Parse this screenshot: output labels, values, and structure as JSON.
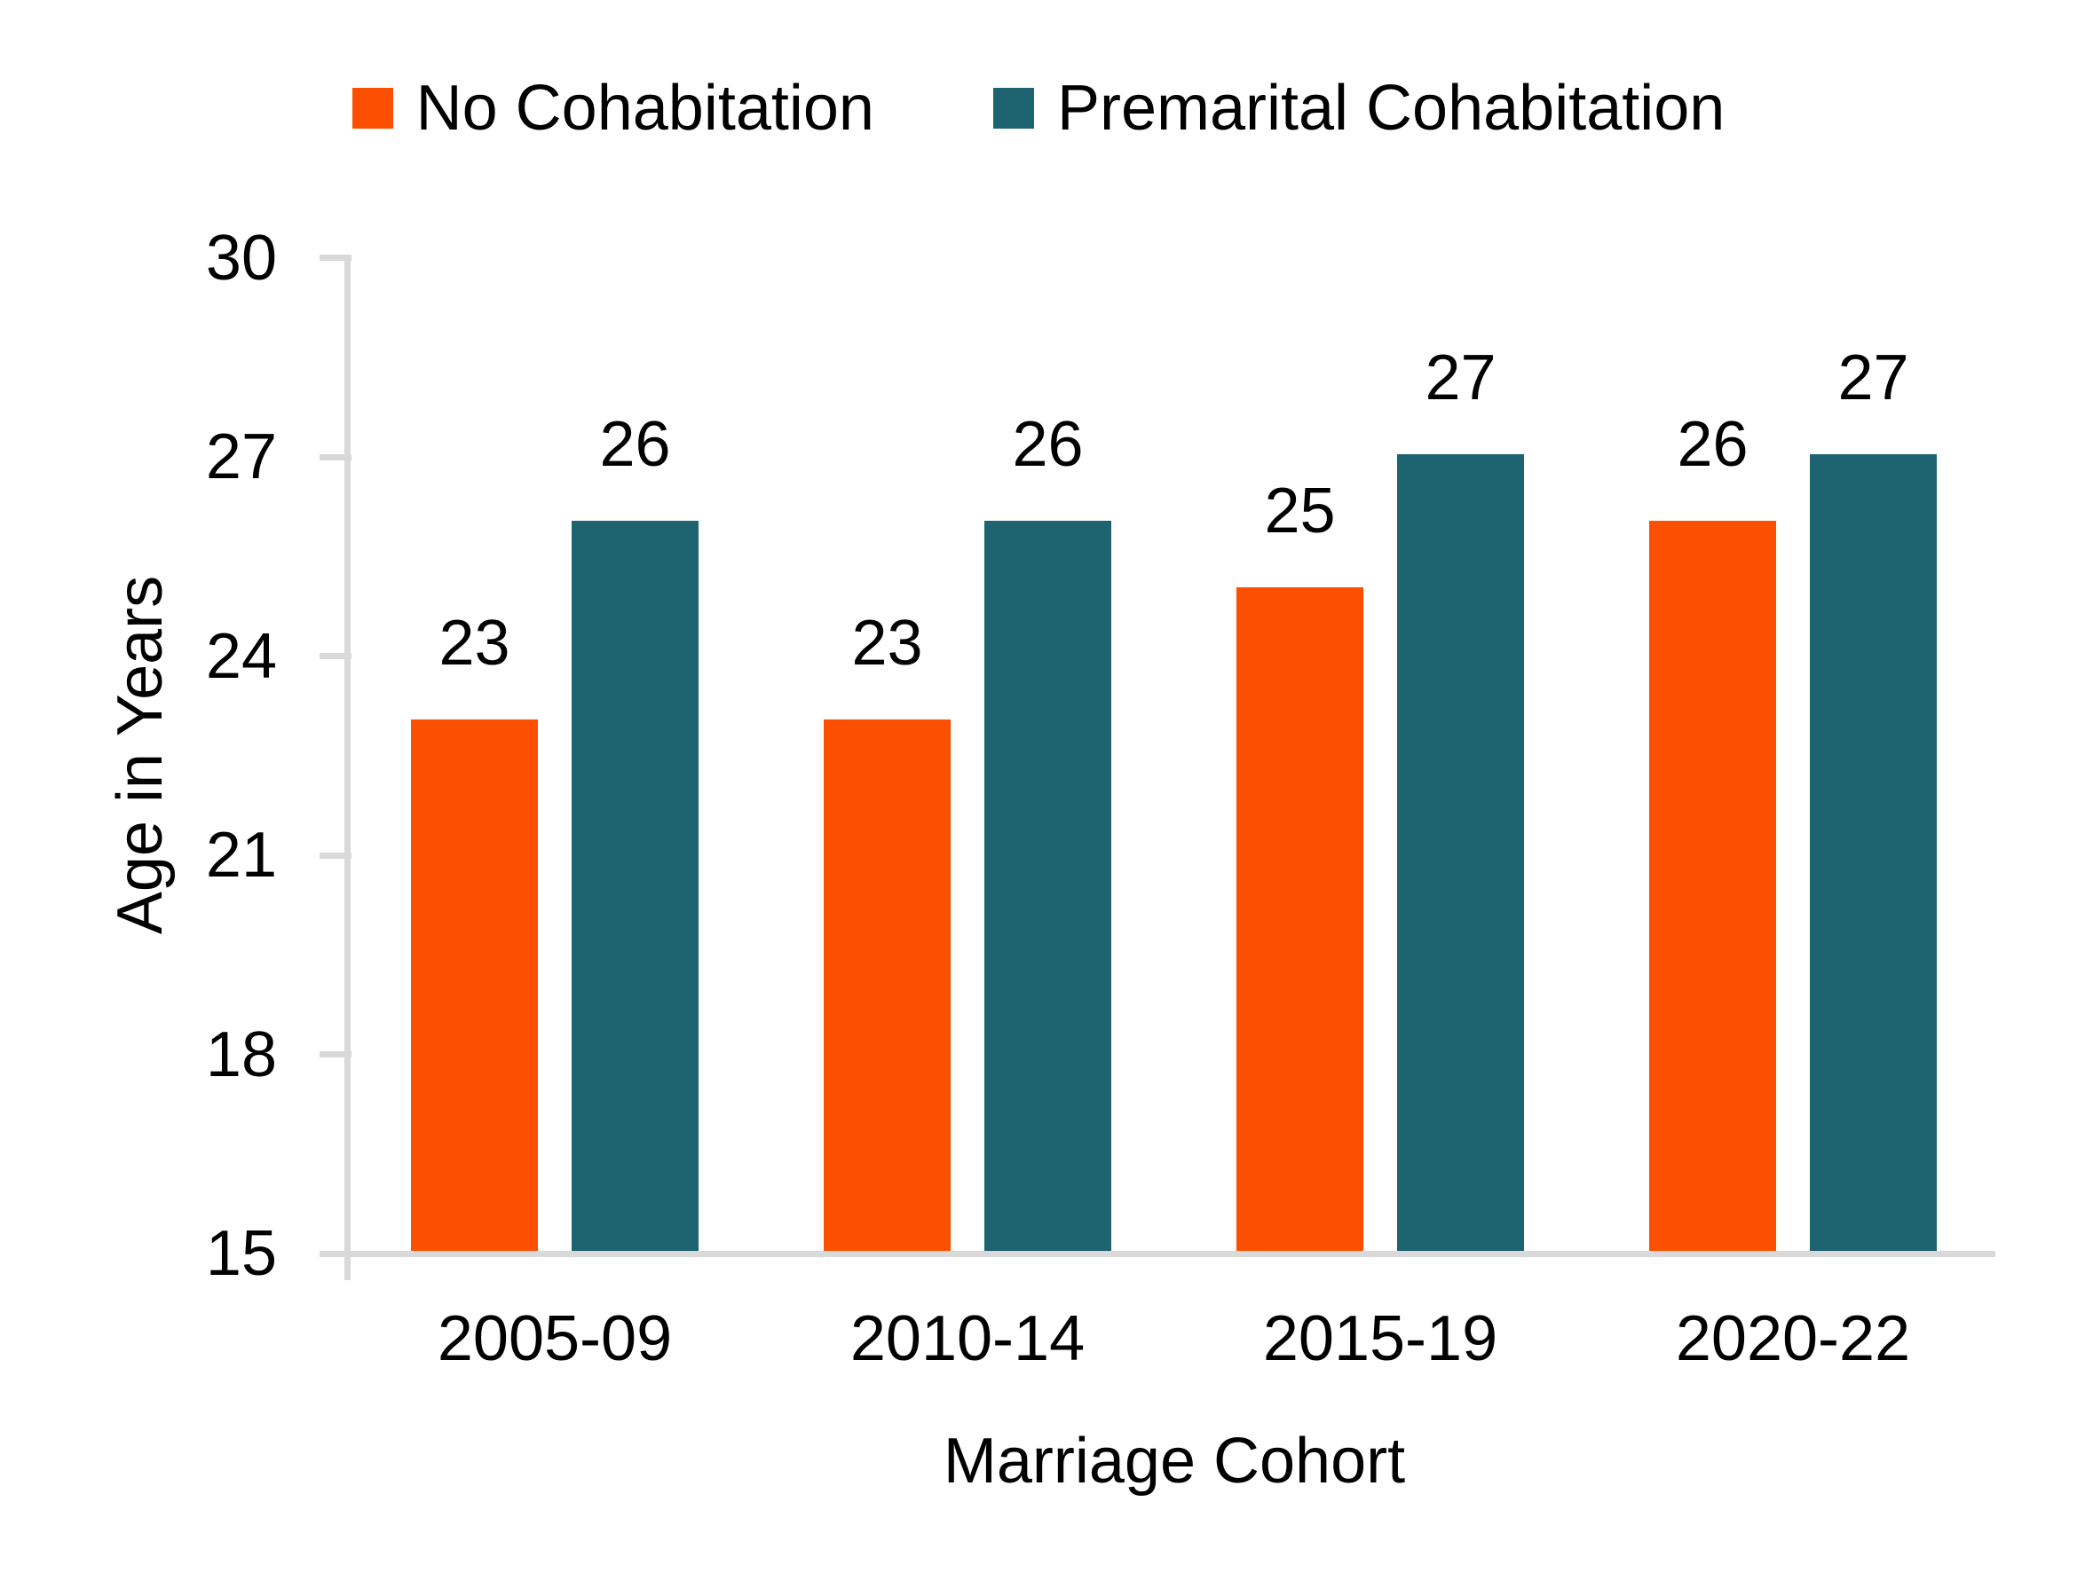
{
  "chart_data": {
    "type": "bar",
    "title": "",
    "categories": [
      "2005-09",
      "2010-14",
      "2015-19",
      "2020-22"
    ],
    "series": [
      {
        "name": "No Cohabitation",
        "color": "#FC5000",
        "values": [
          23,
          23,
          25,
          26
        ]
      },
      {
        "name": "Premarital Cohabitation",
        "color": "#1D6370",
        "values": [
          26,
          26,
          27,
          27
        ]
      }
    ],
    "xlabel": "Marriage Cohort",
    "ylabel": "Age in Years",
    "ylim": [
      15,
      30
    ],
    "yticks": [
      15,
      18,
      21,
      24,
      27,
      30
    ],
    "grid": false,
    "legend_position": "top",
    "data_labels": true,
    "axis_color": "#D9D9D9",
    "text_color": "#000000",
    "background_color": "#FFFFFF"
  }
}
